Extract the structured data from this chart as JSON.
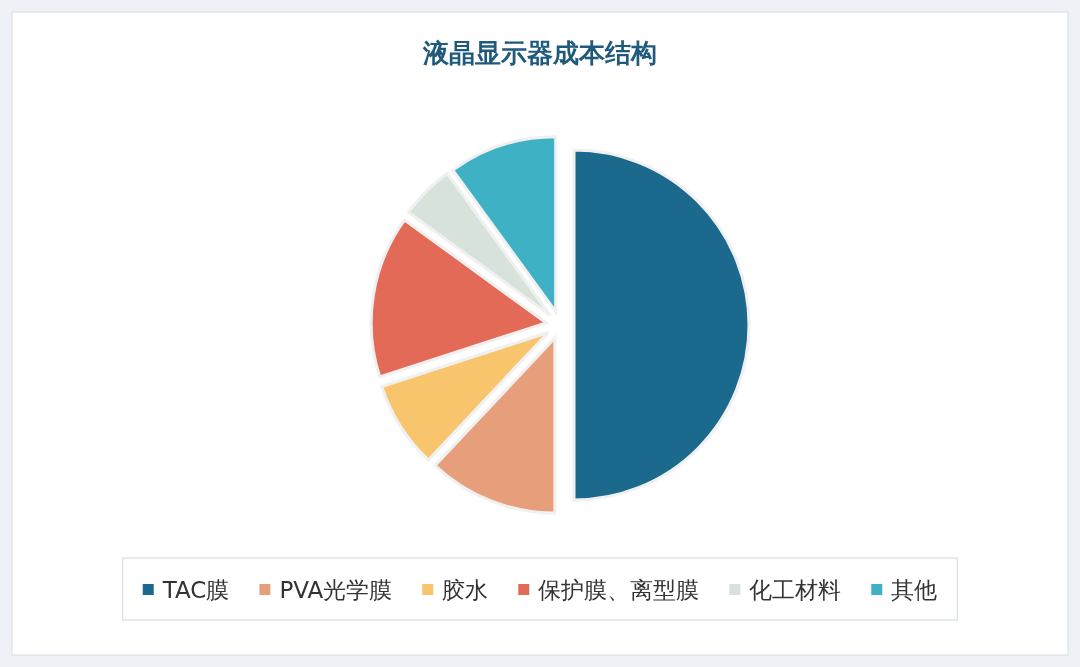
{
  "chart_data": {
    "type": "pie",
    "title": "液晶显示器成本结构",
    "categories": [
      "TAC膜",
      "PVA光学膜",
      "胶水",
      "保护膜、离型膜",
      "化工材料",
      "其他"
    ],
    "values": [
      50,
      12,
      8,
      15,
      5,
      10
    ],
    "colors": [
      "#1b6a8d",
      "#e79f7b",
      "#f8c46c",
      "#e46a58",
      "#d6e2da",
      "#3eb2c4"
    ],
    "legend": "bottom"
  }
}
